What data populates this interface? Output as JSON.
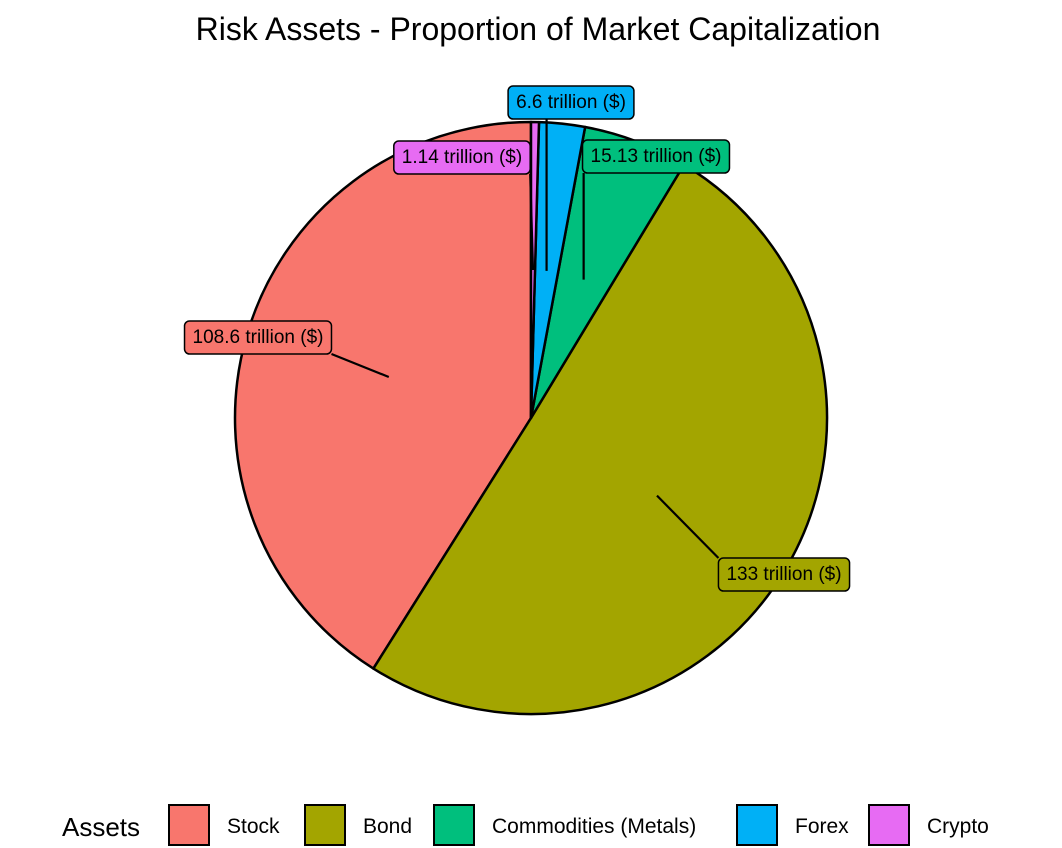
{
  "chart_data": {
    "type": "pie",
    "title": "Risk Assets - Proportion of Market Capitalization",
    "legend_title": "Assets",
    "legend_position": "bottom",
    "direction": "counterclockwise",
    "start": "top",
    "slices": [
      {
        "name": "Stock",
        "value": 108.6,
        "label": "108.6 trillion ($)",
        "color": "#F8766D"
      },
      {
        "name": "Bond",
        "value": 133,
        "label": "133 trillion ($)",
        "color": "#A3A500"
      },
      {
        "name": "Commodities (Metals)",
        "value": 15.13,
        "label": "15.13 trillion ($)",
        "color": "#00BF7D"
      },
      {
        "name": "Forex",
        "value": 6.6,
        "label": "6.6 trillion ($)",
        "color": "#00B0F6"
      },
      {
        "name": "Crypto",
        "value": 1.14,
        "label": "1.14 trillion ($)",
        "color": "#E76BF3"
      }
    ],
    "label_fill_colors": {
      "Stock": "#F8766D",
      "Bond": "#A3A500",
      "Commodities (Metals)": "#00BF7D",
      "Forex": "#00B0F6",
      "Crypto": "#E76BF3"
    }
  }
}
